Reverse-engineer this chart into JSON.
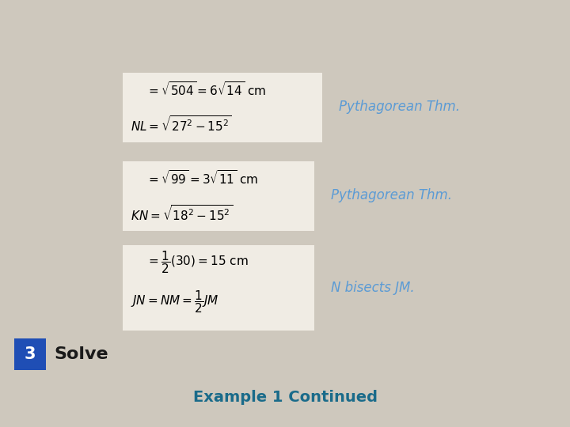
{
  "bg_color": "#cec8bd",
  "title": "Example 1 Continued",
  "title_color": "#1a6b8a",
  "title_fontsize": 14,
  "solve_color": "#1a1a1a",
  "solve_fontsize": 16,
  "box_facecolor": "#f0ece4",
  "annotation_color": "#5b9bd5",
  "annotation_fontsize": 12,
  "puzzle_bg": "#1f4eb5",
  "ann1": "N bisects JM.",
  "ann2": "Pythagorean Thm.",
  "ann3": "Pythagorean Thm.",
  "eq_fontsize": 11
}
